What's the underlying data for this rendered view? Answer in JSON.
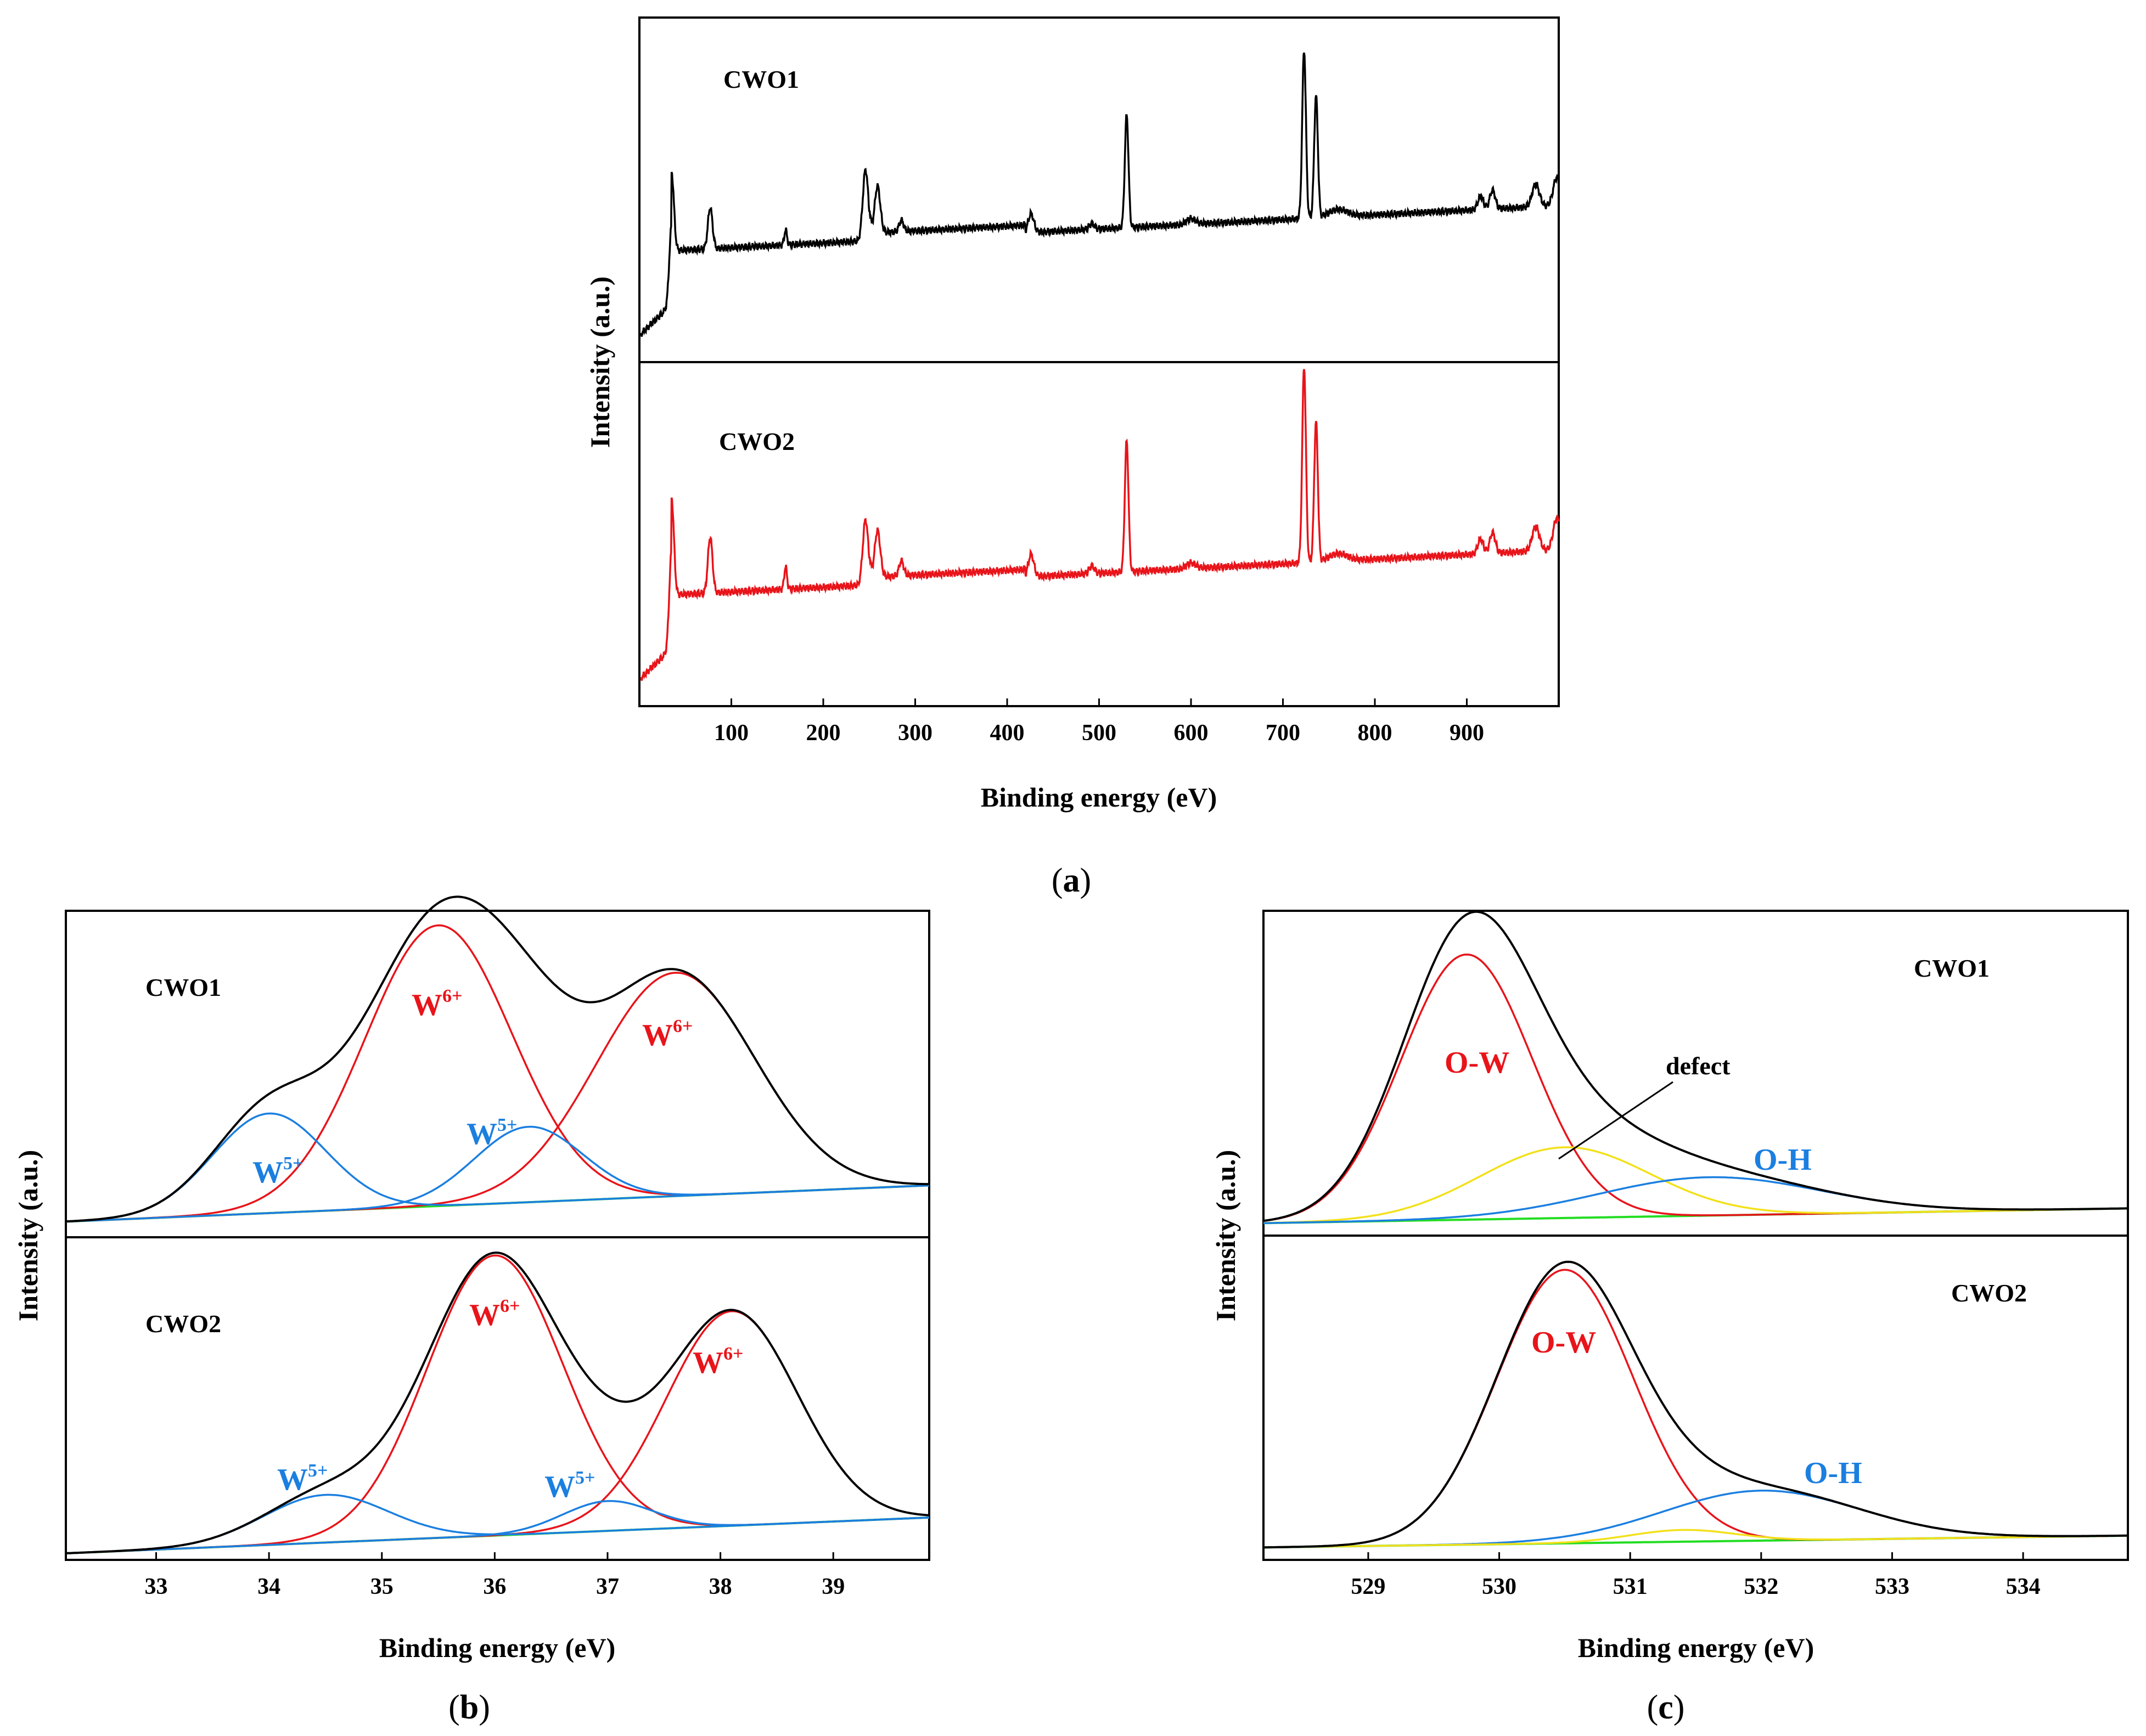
{
  "colors": {
    "envelope": "#000000",
    "w6": "#e8141a",
    "w5": "#1b7fe0",
    "oh": "#1b7fe0",
    "ow": "#e8141a",
    "defect": "#f2e11a",
    "background_line": "#22dd22"
  },
  "chart_data": [
    {
      "id": "a",
      "type": "line",
      "caption": "a",
      "xlabel": "Binding energy (eV)",
      "ylabel": "Intensity (a.u.)",
      "xlim": [
        0,
        1000
      ],
      "xticks": [
        100,
        200,
        300,
        400,
        500,
        600,
        700,
        800,
        900
      ],
      "stacked": true,
      "series": [
        {
          "name": "CWO1",
          "color": "#000000",
          "baseline": 0.55,
          "slope": 0.00025,
          "peaks": [
            {
              "x": 35,
              "h": 0.42,
              "w": 2.5
            },
            {
              "x": 77,
              "h": 0.22,
              "w": 2.5
            },
            {
              "x": 159,
              "h": 0.08,
              "w": 1.5
            },
            {
              "x": 246,
              "h": 0.38,
              "w": 3
            },
            {
              "x": 259,
              "h": 0.25,
              "w": 3
            },
            {
              "x": 285,
              "h": 0.06,
              "w": 2.5
            },
            {
              "x": 426,
              "h": 0.1,
              "w": 3
            },
            {
              "x": 492,
              "h": 0.03,
              "w": 3
            },
            {
              "x": 530,
              "h": 0.6,
              "w": 2
            },
            {
              "x": 600,
              "h": 0.03,
              "w": 5
            },
            {
              "x": 723,
              "h": 0.9,
              "w": 2
            },
            {
              "x": 736,
              "h": 0.65,
              "w": 2
            },
            {
              "x": 760,
              "h": 0.04,
              "w": 10
            },
            {
              "x": 915,
              "h": 0.07,
              "w": 3
            },
            {
              "x": 928,
              "h": 0.1,
              "w": 3
            },
            {
              "x": 975,
              "h": 0.12,
              "w": 4
            },
            {
              "x": 998,
              "h": 0.15,
              "w": 4
            }
          ]
        },
        {
          "name": "CWO2",
          "color": "#e8141a",
          "baseline": 0.55,
          "slope": 0.00025,
          "peaks": [
            {
              "x": 35,
              "h": 0.52,
              "w": 2.5
            },
            {
              "x": 77,
              "h": 0.3,
              "w": 2.5
            },
            {
              "x": 159,
              "h": 0.12,
              "w": 1.5
            },
            {
              "x": 246,
              "h": 0.35,
              "w": 3
            },
            {
              "x": 259,
              "h": 0.25,
              "w": 3
            },
            {
              "x": 285,
              "h": 0.08,
              "w": 2.5
            },
            {
              "x": 426,
              "h": 0.12,
              "w": 3
            },
            {
              "x": 492,
              "h": 0.04,
              "w": 3
            },
            {
              "x": 530,
              "h": 0.7,
              "w": 2
            },
            {
              "x": 600,
              "h": 0.03,
              "w": 5
            },
            {
              "x": 723,
              "h": 1.05,
              "w": 2
            },
            {
              "x": 736,
              "h": 0.75,
              "w": 2
            },
            {
              "x": 760,
              "h": 0.04,
              "w": 10
            },
            {
              "x": 915,
              "h": 0.08,
              "w": 3
            },
            {
              "x": 928,
              "h": 0.11,
              "w": 3
            },
            {
              "x": 975,
              "h": 0.13,
              "w": 4
            },
            {
              "x": 998,
              "h": 0.17,
              "w": 4
            }
          ]
        }
      ]
    },
    {
      "id": "b",
      "type": "line",
      "caption": "b",
      "xlabel": "Binding energy (eV)",
      "ylabel": "Intensity (a.u.)",
      "xlim": [
        32.2,
        39.85
      ],
      "xticks": [
        33,
        34,
        35,
        36,
        37,
        38,
        39
      ],
      "stacked": true,
      "panels": [
        {
          "name": "CWO1",
          "background": {
            "x0": 32.2,
            "y0": 0.03,
            "x1": 39.85,
            "y1": 0.15
          },
          "components": [
            {
              "label": "W6+",
              "color": "#e8141a",
              "center": 35.5,
              "height": 0.93,
              "sigma": 0.65
            },
            {
              "label": "W6+",
              "color": "#e8141a",
              "center": 37.6,
              "height": 0.74,
              "sigma": 0.7
            },
            {
              "label": "W5+",
              "color": "#1b7fe0",
              "center": 34.0,
              "height": 0.33,
              "sigma": 0.5
            },
            {
              "label": "W5+",
              "color": "#1b7fe0",
              "center": 36.3,
              "height": 0.25,
              "sigma": 0.48
            }
          ]
        },
        {
          "name": "CWO2",
          "background": {
            "x0": 32.2,
            "y0": 0.0,
            "x1": 39.85,
            "y1": 0.12
          },
          "components": [
            {
              "label": "W6+",
              "color": "#e8141a",
              "center": 36.0,
              "height": 0.94,
              "sigma": 0.6
            },
            {
              "label": "W6+",
              "color": "#e8141a",
              "center": 38.1,
              "height": 0.72,
              "sigma": 0.58
            },
            {
              "label": "W5+",
              "color": "#1b7fe0",
              "center": 34.5,
              "height": 0.16,
              "sigma": 0.55
            },
            {
              "label": "W5+",
              "color": "#1b7fe0",
              "center": 37.0,
              "height": 0.1,
              "sigma": 0.4
            }
          ]
        }
      ]
    },
    {
      "id": "c",
      "type": "line",
      "caption": "c",
      "xlabel": "Binding energy (eV)",
      "ylabel": "Intensity (a.u.)",
      "xlim": [
        528.2,
        534.8
      ],
      "xticks": [
        529,
        530,
        531,
        532,
        533,
        534
      ],
      "stacked": true,
      "panels": [
        {
          "name": "CWO1",
          "background": {
            "x0": 528.2,
            "y0": 0.02,
            "x1": 534.8,
            "y1": 0.07
          },
          "components": [
            {
              "label": "O-W",
              "color": "#e8141a",
              "center": 529.75,
              "height": 0.9,
              "sigma": 0.5
            },
            {
              "label": "defect",
              "color": "#f2e11a",
              "center": 530.5,
              "height": 0.24,
              "sigma": 0.65
            },
            {
              "label": "O-H",
              "color": "#1b7fe0",
              "center": 531.6,
              "height": 0.13,
              "sigma": 0.85
            }
          ]
        },
        {
          "name": "CWO2",
          "background": {
            "x0": 528.2,
            "y0": 0.02,
            "x1": 534.8,
            "y1": 0.06
          },
          "components": [
            {
              "label": "O-W",
              "color": "#e8141a",
              "center": 530.5,
              "height": 0.93,
              "sigma": 0.52
            },
            {
              "label": "O-H",
              "color": "#1b7fe0",
              "center": 532.0,
              "height": 0.17,
              "sigma": 0.75
            },
            {
              "label": "defect",
              "color": "#f2e11a",
              "center": 531.4,
              "height": 0.04,
              "sigma": 0.4
            }
          ]
        }
      ]
    }
  ],
  "labels": {
    "a_cwo1": "CWO1",
    "a_cwo2": "CWO2",
    "b_cwo1": "CWO1",
    "b_cwo2": "CWO2",
    "c_cwo1": "CWO1",
    "c_cwo2": "CWO2",
    "w6_main": "W",
    "w6_sup": "6+",
    "w5_main": "W",
    "w5_sup": "5+",
    "ow": "O-W",
    "oh": "O-H",
    "defect": "defect",
    "xlabel": "Binding energy (eV)",
    "ylabel": "Intensity (a.u.)",
    "cap_a": "a",
    "cap_b": "b",
    "cap_c": "c",
    "paren_open": "(",
    "paren_close": ")"
  }
}
